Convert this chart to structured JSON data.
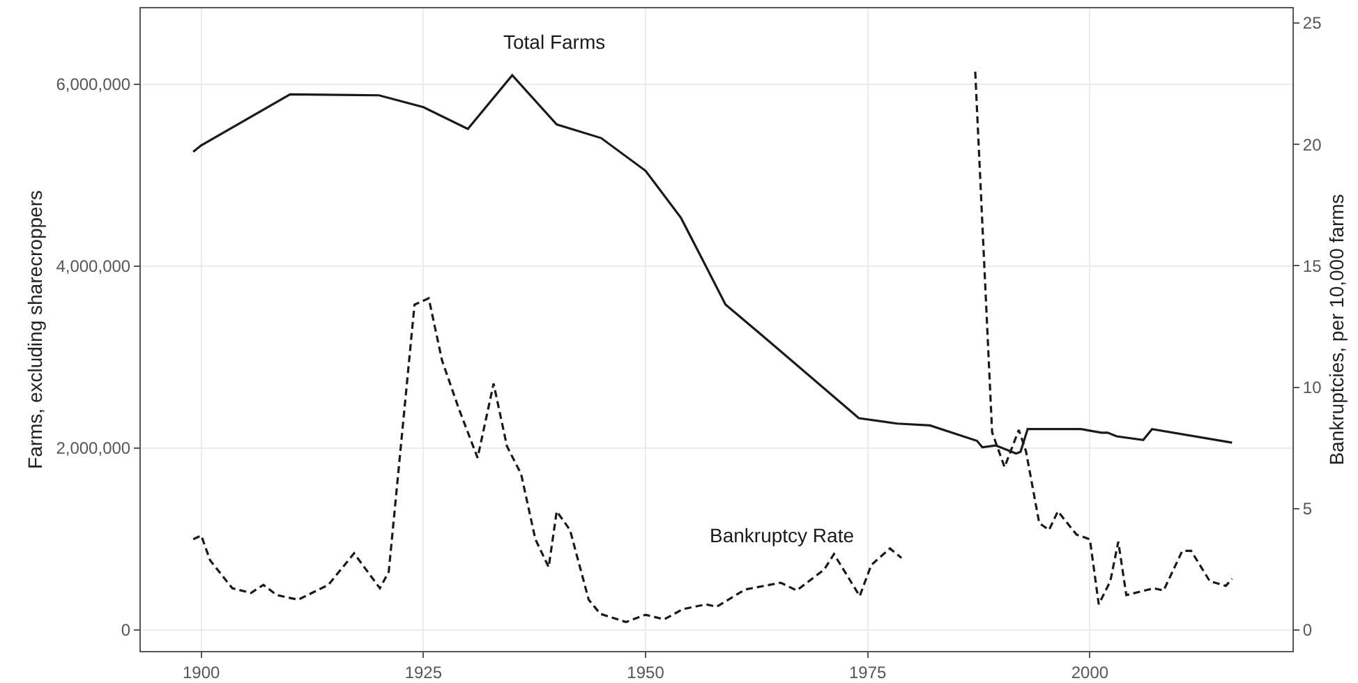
{
  "chart_data": {
    "type": "line",
    "ylabel": "Farms, excluding sharecroppers",
    "y2label": "Bankruptcies, per 10,000 farms",
    "xlim": [
      1893.2,
      2022.8
    ],
    "xticks": [
      1900,
      1925,
      1950,
      1975,
      2000
    ],
    "ylim": [
      -230000,
      6836000
    ],
    "yticks": [
      {
        "value": 0,
        "label": "0"
      },
      {
        "value": 2000000,
        "label": "2,000,000"
      },
      {
        "value": 4000000,
        "label": "4,000,000"
      },
      {
        "value": 6000000,
        "label": "6,000,000"
      }
    ],
    "y2lim": [
      -0.86,
      25.6
    ],
    "y2ticks": [
      0,
      5,
      10,
      15,
      20,
      25
    ],
    "grid": true,
    "legend": false,
    "marker": "none",
    "series": [
      {
        "name": "Total Farms",
        "color": "#1a1a1a",
        "line_style": "solid",
        "x": [
          1899.1,
          1900,
          1910,
          1920,
          1925,
          1930,
          1935,
          1940,
          1945,
          1950,
          1954,
          1959,
          1963,
          1974,
          1978.3,
          1982,
          1987.3,
          1987.9,
          1989.4,
          1991.7,
          1992.2,
          1993,
          1999,
          2001.3,
          2002,
          2003,
          2006,
          2007,
          2016
        ],
        "values": [
          5260000,
          5330000,
          5890000,
          5880000,
          5750000,
          5510000,
          6100000,
          5560000,
          5410000,
          5050000,
          4530000,
          3580000,
          3250000,
          2330000,
          2270000,
          2250000,
          2080000,
          2010000,
          2030000,
          1940000,
          1960000,
          2210000,
          2210000,
          2170000,
          2170000,
          2130000,
          2090000,
          2210000,
          2060000
        ]
      },
      {
        "name": "Bankruptcy Rate",
        "color": "#1a1a1a",
        "line_style": "dashed",
        "axis": "y2",
        "x": [
          1899.1,
          1900,
          1901,
          1903.5,
          1905.6,
          1907,
          1908.5,
          1910.9,
          1914.3,
          1917.2,
          1920.1,
          1921.1,
          1924,
          1925.6,
          1927.1,
          1929,
          1931.1,
          1932.9,
          1934.4,
          1936,
          1937.6,
          1939.1,
          1940,
          1941.5,
          1943.6,
          1944.9,
          1947.8,
          1950,
          1952.1,
          1954.2,
          1956.8,
          1958,
          1961.2,
          1965.2,
          1967,
          1970.1,
          1971.2,
          1974.1,
          1975.4,
          1977.5,
          1978.8,
          1983,
          1987.1,
          1989,
          1990.4,
          1992,
          1992.8,
          1994.3,
          1995.4,
          1996.4,
          1998.5,
          2000,
          2001,
          2002.3,
          2003.2,
          2004.1,
          2007.2,
          2008.3,
          2010.4,
          2011.4,
          2013.5,
          2015.3,
          2016
        ],
        "values": [
          3.74,
          3.89,
          2.87,
          1.72,
          1.53,
          1.86,
          1.44,
          1.25,
          1.86,
          3.16,
          1.72,
          2.4,
          13.4,
          13.66,
          11.1,
          9.1,
          7.09,
          10.15,
          7.57,
          6.42,
          3.74,
          2.59,
          4.89,
          4.12,
          1.25,
          0.67,
          0.33,
          0.63,
          0.44,
          0.86,
          1.06,
          0.96,
          1.67,
          1.95,
          1.63,
          2.49,
          3.13,
          1.4,
          2.68,
          3.36,
          2.97,
          null,
          22.99,
          8.14,
          6.71,
          8.24,
          7.38,
          4.41,
          4.12,
          4.89,
          3.93,
          3.74,
          1.06,
          2.01,
          3.64,
          1.44,
          1.72,
          1.63,
          3.26,
          3.26,
          2.01,
          1.82,
          2.11
        ]
      }
    ]
  }
}
